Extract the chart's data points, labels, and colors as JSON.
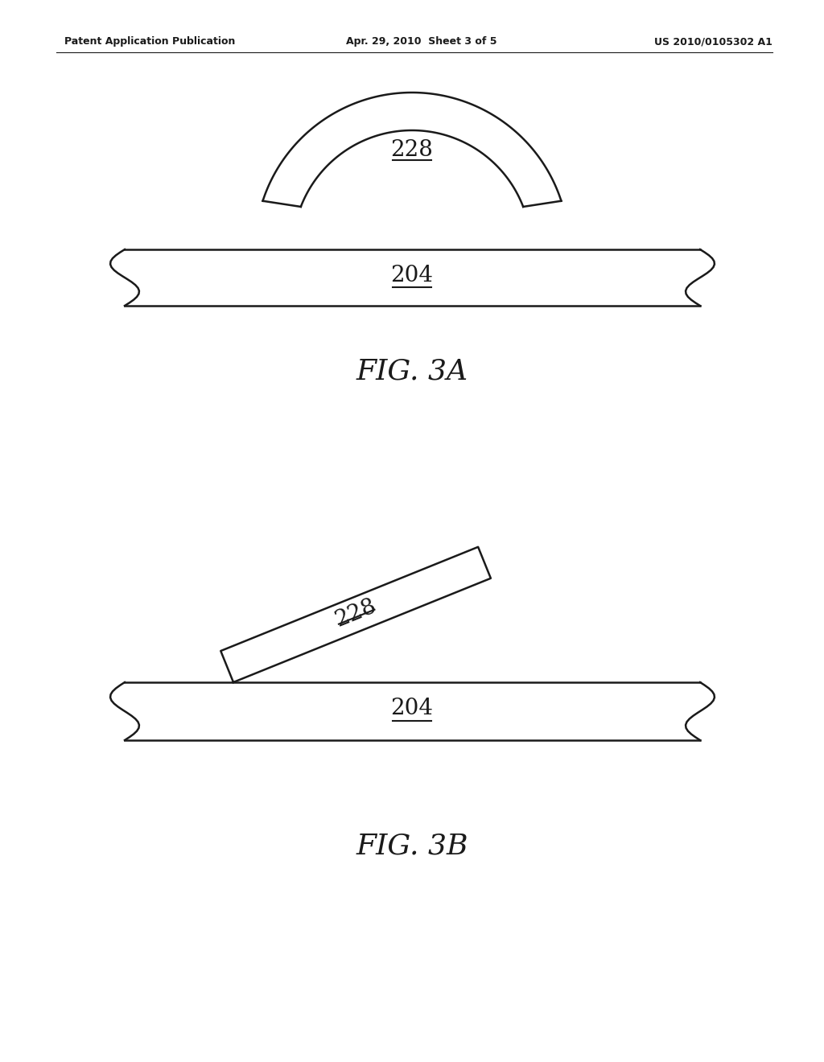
{
  "bg_color": "#ffffff",
  "line_color": "#1a1a1a",
  "line_width": 1.8,
  "header_left": "Patent Application Publication",
  "header_mid": "Apr. 29, 2010  Sheet 3 of 5",
  "header_right": "US 2010/0105302 A1",
  "fig3a_label": "FIG. 3A",
  "fig3b_label": "FIG. 3B",
  "label_228": "228",
  "label_204": "204"
}
